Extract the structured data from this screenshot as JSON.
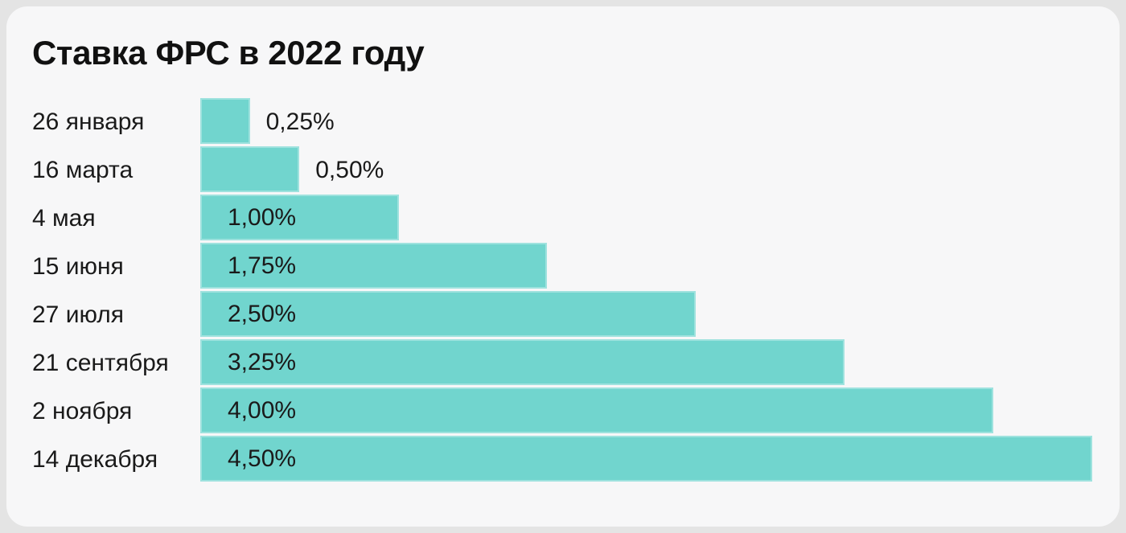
{
  "page": {
    "background": "#e4e4e4"
  },
  "card": {
    "background": "#f7f7f8"
  },
  "chart_data": {
    "type": "bar",
    "orientation": "horizontal",
    "title": "Ставка ФРС в 2022 году",
    "categories": [
      "26 января",
      "16 марта",
      "4 мая",
      "15 июня",
      "27 июля",
      "21 сентября",
      "2 ноября",
      "14 декабря"
    ],
    "values": [
      0.25,
      0.5,
      1.0,
      1.75,
      2.5,
      3.25,
      4.0,
      4.5
    ],
    "value_labels": [
      "0,25%",
      "0,50%",
      "1,00%",
      "1,75%",
      "2,50%",
      "3,25%",
      "4,00%",
      "4,50%"
    ],
    "xlim": [
      0,
      4.5
    ],
    "xlabel": "",
    "ylabel": "",
    "grid": false,
    "legend": false,
    "bar_color": "#71d5ce",
    "text_color": "#1a1a1a",
    "title_color": "#111111",
    "value_label_rule": "inside bar when value >= 1.00, otherwise right of bar end"
  }
}
